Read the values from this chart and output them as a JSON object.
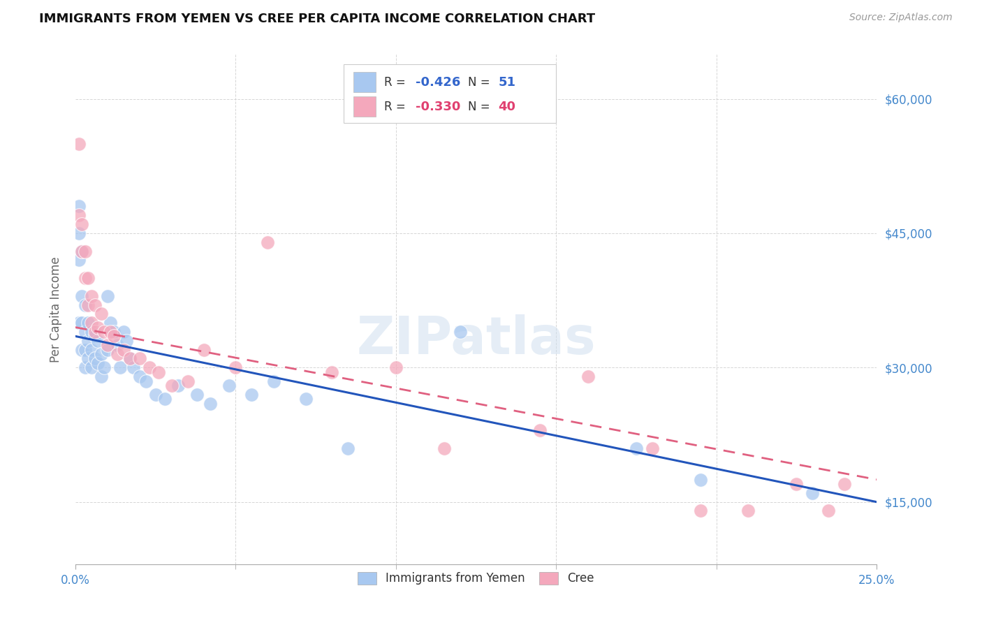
{
  "title": "IMMIGRANTS FROM YEMEN VS CREE PER CAPITA INCOME CORRELATION CHART",
  "source": "Source: ZipAtlas.com",
  "ylabel": "Per Capita Income",
  "yticks": [
    15000,
    30000,
    45000,
    60000
  ],
  "ytick_labels": [
    "$15,000",
    "$30,000",
    "$45,000",
    "$60,000"
  ],
  "xmin": 0.0,
  "xmax": 0.25,
  "ymin": 8000,
  "ymax": 65000,
  "color_blue": "#A8C8F0",
  "color_pink": "#F4A8BC",
  "line_blue": "#2255BB",
  "line_pink": "#E06080",
  "watermark_text": "ZIPatlas",
  "legend_label_blue": "Immigrants from Yemen",
  "legend_label_pink": "Cree",
  "blue_x": [
    0.001,
    0.001,
    0.001,
    0.001,
    0.002,
    0.002,
    0.002,
    0.002,
    0.003,
    0.003,
    0.003,
    0.003,
    0.004,
    0.004,
    0.004,
    0.005,
    0.005,
    0.005,
    0.006,
    0.006,
    0.007,
    0.007,
    0.008,
    0.008,
    0.009,
    0.01,
    0.01,
    0.011,
    0.012,
    0.013,
    0.014,
    0.015,
    0.016,
    0.017,
    0.018,
    0.02,
    0.022,
    0.025,
    0.028,
    0.032,
    0.038,
    0.042,
    0.048,
    0.055,
    0.062,
    0.072,
    0.085,
    0.12,
    0.175,
    0.195,
    0.23
  ],
  "blue_y": [
    48000,
    45000,
    42000,
    35000,
    43000,
    38000,
    35000,
    32000,
    37000,
    34000,
    32000,
    30000,
    35000,
    33000,
    31000,
    34000,
    32000,
    30000,
    33500,
    31000,
    33000,
    30500,
    31500,
    29000,
    30000,
    32000,
    38000,
    35000,
    34000,
    32500,
    30000,
    34000,
    33000,
    31000,
    30000,
    29000,
    28500,
    27000,
    26500,
    28000,
    27000,
    26000,
    28000,
    27000,
    28500,
    26500,
    21000,
    34000,
    21000,
    17500,
    16000
  ],
  "pink_x": [
    0.001,
    0.001,
    0.002,
    0.002,
    0.003,
    0.003,
    0.004,
    0.004,
    0.005,
    0.005,
    0.006,
    0.006,
    0.007,
    0.008,
    0.009,
    0.01,
    0.011,
    0.012,
    0.013,
    0.015,
    0.017,
    0.02,
    0.023,
    0.026,
    0.03,
    0.035,
    0.04,
    0.05,
    0.06,
    0.08,
    0.1,
    0.115,
    0.145,
    0.16,
    0.18,
    0.195,
    0.21,
    0.225,
    0.235,
    0.24
  ],
  "pink_y": [
    55000,
    47000,
    46000,
    43000,
    43000,
    40000,
    40000,
    37000,
    38000,
    35000,
    37000,
    34000,
    34500,
    36000,
    34000,
    32500,
    34000,
    33500,
    31500,
    32000,
    31000,
    31000,
    30000,
    29500,
    28000,
    28500,
    32000,
    30000,
    44000,
    29500,
    30000,
    21000,
    23000,
    29000,
    21000,
    14000,
    14000,
    17000,
    14000,
    17000
  ]
}
